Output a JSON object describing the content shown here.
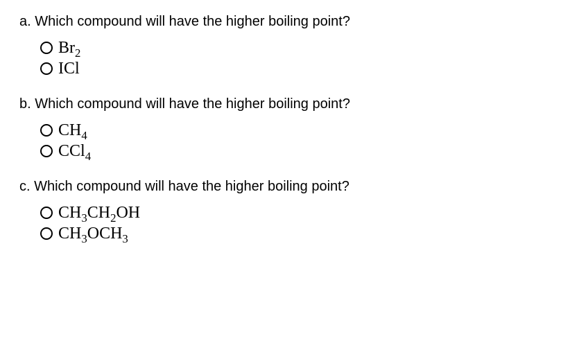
{
  "questions": [
    {
      "label": "a.",
      "text": "Which compound will have the higher boiling point?",
      "options": [
        {
          "parts": [
            {
              "t": "Br"
            },
            {
              "t": "2",
              "sub": true
            }
          ]
        },
        {
          "parts": [
            {
              "t": "ICl"
            }
          ]
        }
      ]
    },
    {
      "label": "b.",
      "text": "Which compound will have the higher boiling point?",
      "options": [
        {
          "parts": [
            {
              "t": "CH"
            },
            {
              "t": "4",
              "sub": true
            }
          ]
        },
        {
          "parts": [
            {
              "t": "CCl"
            },
            {
              "t": "4",
              "sub": true
            }
          ]
        }
      ]
    },
    {
      "label": "c.",
      "text": "Which compound will have the higher boiling point?",
      "options": [
        {
          "parts": [
            {
              "t": "CH"
            },
            {
              "t": "3",
              "sub": true
            },
            {
              "t": "CH"
            },
            {
              "t": "2",
              "sub": true
            },
            {
              "t": "OH"
            }
          ]
        },
        {
          "parts": [
            {
              "t": "CH"
            },
            {
              "t": "3",
              "sub": true
            },
            {
              "t": "OCH"
            },
            {
              "t": "3",
              "sub": true
            }
          ]
        }
      ]
    }
  ]
}
